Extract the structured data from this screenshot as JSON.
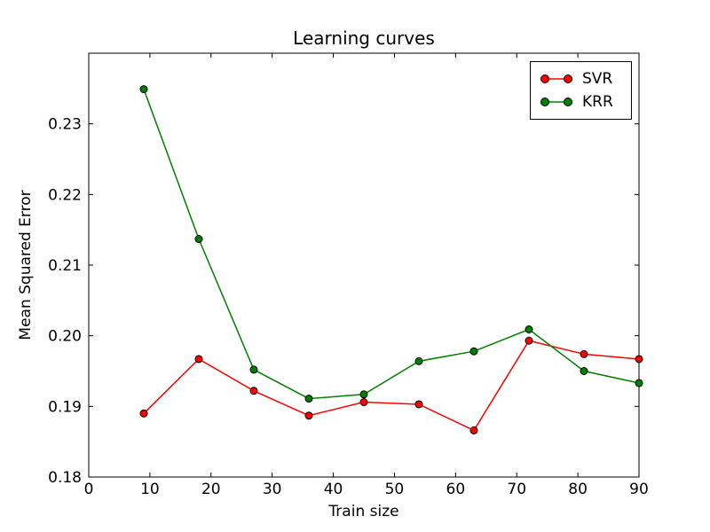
{
  "figure": {
    "background": "#ffffff",
    "frame_color": "#000000"
  },
  "chart_data": {
    "type": "line",
    "title": "Learning curves",
    "xlabel": "Train size",
    "ylabel": "Mean Squared Error",
    "x": [
      9,
      18,
      27,
      36,
      45,
      54,
      63,
      72,
      81,
      90
    ],
    "series": [
      {
        "name": "SVR",
        "color": "#ff0000",
        "marker": "circle",
        "values": [
          0.189,
          0.1967,
          0.1922,
          0.1887,
          0.1906,
          0.1903,
          0.1866,
          0.1993,
          0.1974,
          0.1967
        ]
      },
      {
        "name": "KRR",
        "color": "#008000",
        "marker": "circle",
        "values": [
          0.2349,
          0.2137,
          0.1952,
          0.1911,
          0.1917,
          0.1964,
          0.1978,
          0.2009,
          0.195,
          0.1933
        ]
      }
    ],
    "xlim": [
      0,
      90
    ],
    "ylim": [
      0.18,
      0.24
    ],
    "xticks": [
      0,
      10,
      20,
      30,
      40,
      50,
      60,
      70,
      80,
      90
    ],
    "xtick_labels": [
      "0",
      "10",
      "20",
      "30",
      "40",
      "50",
      "60",
      "70",
      "80",
      "90"
    ],
    "yticks": [
      0.18,
      0.19,
      0.2,
      0.21,
      0.22,
      0.23
    ],
    "ytick_labels": [
      "0.18",
      "0.19",
      "0.20",
      "0.21",
      "0.22",
      "0.23"
    ],
    "grid": false,
    "legend_position": "upper right",
    "marker_edge_color": "#000000"
  }
}
